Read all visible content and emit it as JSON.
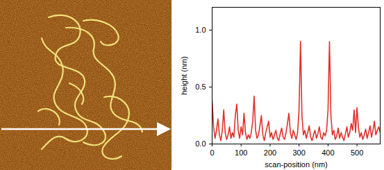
{
  "chart_data": {
    "type": "line",
    "x_label": "scan-position (nm)",
    "y_label": "height (nm)",
    "xlim": [
      0,
      580
    ],
    "xticks": [
      0,
      100,
      200,
      300,
      400,
      500
    ],
    "ylim": [
      0,
      1.2
    ],
    "yticks": [
      {
        "value": 0,
        "label": "0.0"
      },
      {
        "value": 0.5,
        "label": "0.5"
      },
      {
        "value": 1,
        "label": "1.0"
      }
    ],
    "grid": false,
    "color": "#e0302a",
    "x": [
      0,
      5,
      10,
      15,
      20,
      25,
      30,
      35,
      40,
      45,
      50,
      55,
      60,
      65,
      70,
      75,
      80,
      85,
      90,
      95,
      100,
      105,
      110,
      115,
      120,
      125,
      130,
      135,
      140,
      145,
      150,
      155,
      160,
      165,
      170,
      175,
      180,
      185,
      190,
      195,
      200,
      205,
      210,
      215,
      220,
      225,
      230,
      235,
      240,
      245,
      250,
      255,
      260,
      265,
      270,
      275,
      280,
      285,
      290,
      295,
      300,
      305,
      310,
      315,
      320,
      325,
      330,
      335,
      340,
      345,
      350,
      355,
      360,
      365,
      370,
      375,
      380,
      385,
      390,
      395,
      400,
      405,
      410,
      415,
      420,
      425,
      430,
      435,
      440,
      445,
      450,
      455,
      460,
      465,
      470,
      475,
      480,
      485,
      490,
      495,
      500,
      505,
      510,
      515,
      520,
      525,
      530,
      535,
      540,
      545,
      550,
      555,
      560,
      565,
      570,
      575,
      580
    ],
    "values": [
      0.38,
      0.15,
      0.05,
      0.12,
      0.22,
      0.08,
      0.03,
      0.12,
      0.3,
      0.1,
      0.04,
      0.08,
      0.15,
      0.05,
      0.1,
      0.06,
      0.25,
      0.35,
      0.12,
      0.05,
      0.15,
      0.08,
      0.27,
      0.1,
      0.04,
      0.08,
      0.05,
      0.1,
      0.2,
      0.42,
      0.12,
      0.05,
      0.08,
      0.16,
      0.25,
      0.08,
      0.03,
      0.1,
      0.15,
      0.2,
      0.06,
      0.1,
      0.04,
      0.08,
      0.12,
      0.05,
      0.03,
      0.09,
      0.14,
      0.06,
      0.04,
      0.1,
      0.18,
      0.27,
      0.1,
      0.05,
      0.12,
      0.08,
      0.04,
      0.1,
      0.3,
      0.9,
      0.25,
      0.08,
      0.12,
      0.05,
      0.1,
      0.16,
      0.06,
      0.03,
      0.08,
      0.12,
      0.05,
      0.09,
      0.15,
      0.06,
      0.04,
      0.1,
      0.07,
      0.12,
      0.3,
      0.9,
      0.25,
      0.08,
      0.12,
      0.04,
      0.07,
      0.14,
      0.05,
      0.1,
      0.06,
      0.03,
      0.09,
      0.15,
      0.06,
      0.1,
      0.18,
      0.12,
      0.3,
      0.1,
      0.32,
      0.14,
      0.06,
      0.1,
      0.04,
      0.08,
      0.13,
      0.05,
      0.1,
      0.16,
      0.06,
      0.12,
      0.2,
      0.08,
      0.12,
      0.15,
      0.1
    ]
  }
}
